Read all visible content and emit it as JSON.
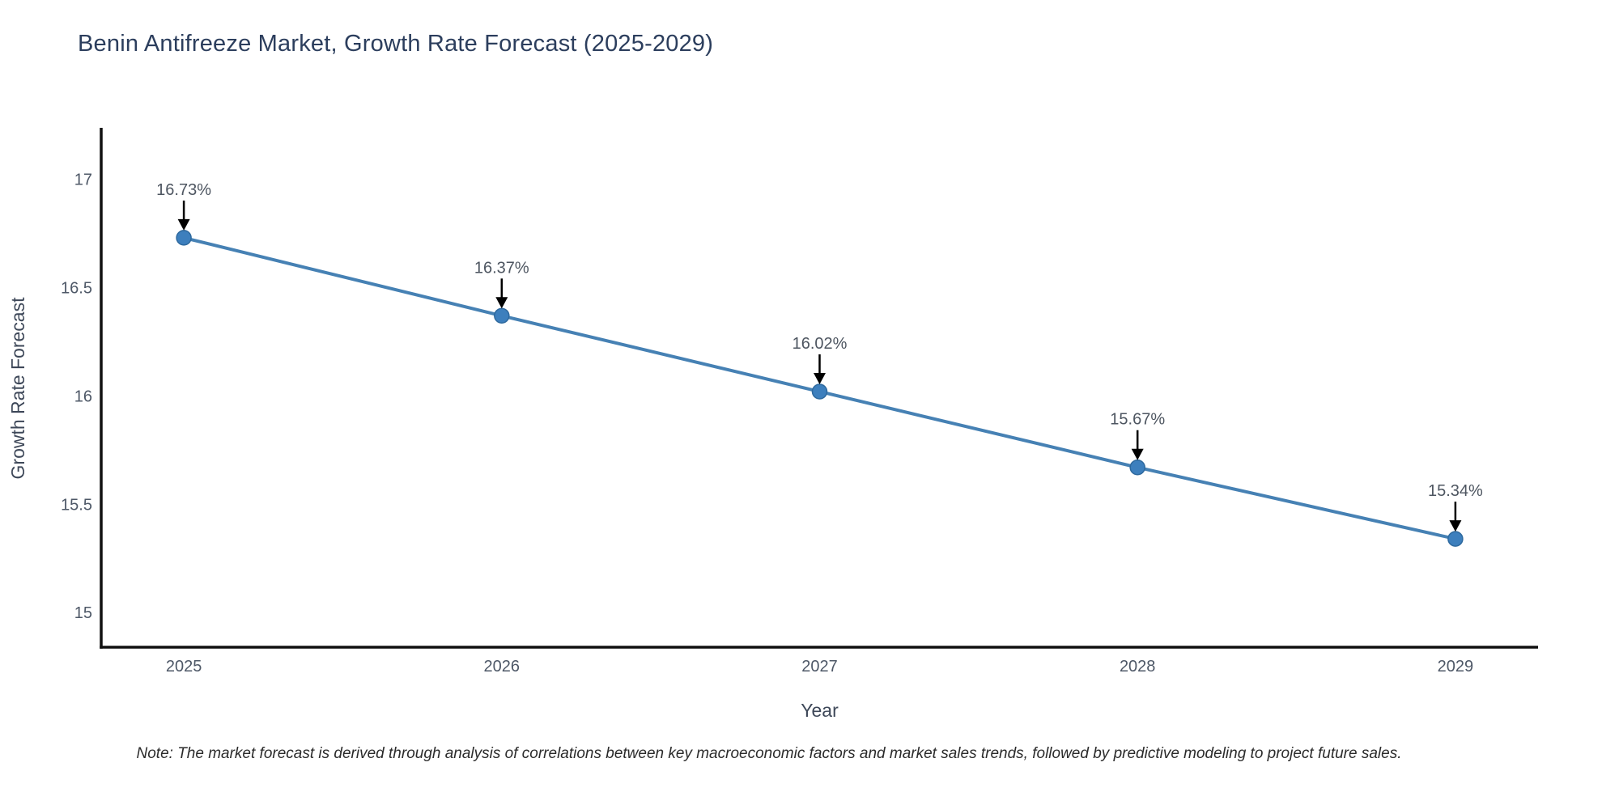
{
  "header": {
    "title": "Benin Antifreeze Market, Growth Rate Forecast (2025-2029)"
  },
  "chart_data": {
    "type": "line",
    "title": "Benin Antifreeze Market, Growth Rate Forecast (2025-2029)",
    "xlabel": "Year",
    "ylabel": "Growth Rate Forecast",
    "categories": [
      "2025",
      "2026",
      "2027",
      "2028",
      "2029"
    ],
    "x": [
      2025,
      2026,
      2027,
      2028,
      2029
    ],
    "series": [
      {
        "name": "Growth Rate Forecast",
        "values": [
          16.73,
          16.37,
          16.02,
          15.67,
          15.34
        ]
      }
    ],
    "point_labels": [
      "16.73%",
      "16.37%",
      "16.02%",
      "15.67%",
      "15.34%"
    ],
    "yticks": [
      15,
      15.5,
      16,
      16.5,
      17
    ],
    "ytick_labels": [
      "15",
      "15.5",
      "16",
      "16.5",
      "17"
    ],
    "ylim": [
      14.84,
      17.23
    ],
    "xlim": [
      2024.74,
      2029.26
    ],
    "grid": false,
    "legend_position": "none",
    "colors": {
      "line": "#4681b4",
      "marker_fill": "#3d7fbd",
      "marker_edge": "#2e699e",
      "axis": "#111111",
      "arrow": "#000000",
      "tick_text": "#4e5867",
      "annotation_text": "#4d5560",
      "title_text": "#2c3e5d"
    }
  },
  "footer": {
    "note": "Note: The market forecast is derived through analysis of correlations between key macroeconomic factors and market sales trends, followed by predictive modeling to project future sales."
  }
}
